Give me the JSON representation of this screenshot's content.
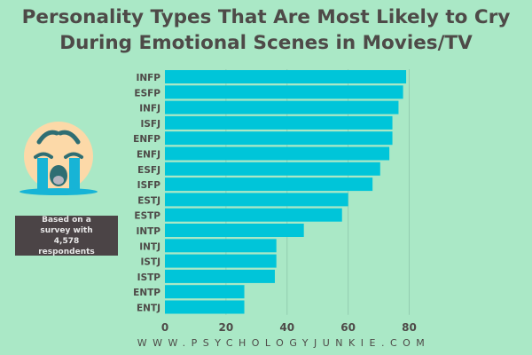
{
  "title_line1": "Personality Types That Are Most Likely to Cry",
  "title_line2": "During Emotional Scenes in Movies/TV",
  "note": "Based on a survey with 4,578 respondents",
  "footer": "WWW.PSYCHOLOGYJUNKIE.COM",
  "icon": "loudly-crying-face-emoji",
  "colors": {
    "background": "#aae8c6",
    "bar": "#00c5d9",
    "text": "#4e4a48",
    "note_box": "#4b4446"
  },
  "chart_data": {
    "type": "bar",
    "orientation": "horizontal",
    "categories": [
      "INFP",
      "ESFP",
      "INFJ",
      "ISFJ",
      "ENFP",
      "ENFJ",
      "ESFJ",
      "ISFP",
      "ESTJ",
      "ESTP",
      "INTP",
      "INTJ",
      "ISTJ",
      "ISTP",
      "ENTP",
      "ENTJ"
    ],
    "values": [
      79,
      78,
      76.5,
      74.5,
      74.5,
      73.5,
      70.5,
      68,
      60,
      58,
      45.5,
      36.5,
      36.5,
      36,
      26,
      26
    ],
    "xlim": [
      0,
      80
    ],
    "xticks": [
      "0",
      "20",
      "40",
      "60",
      "80"
    ],
    "grid": "vertical",
    "title": "Personality Types That Are Most Likely to Cry During Emotional Scenes in Movies/TV"
  }
}
